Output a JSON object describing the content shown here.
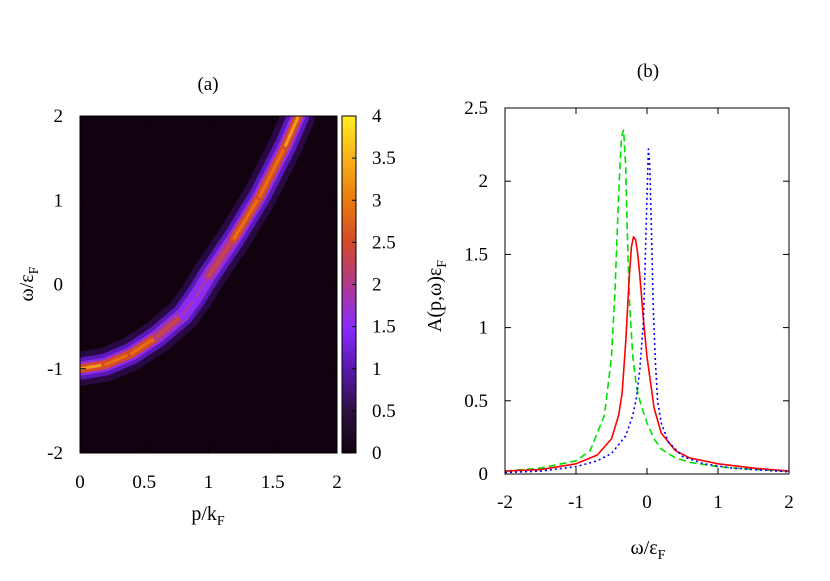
{
  "panel_a": {
    "title": "(a)",
    "xlabel": {
      "base": "p/k",
      "sub": "F"
    },
    "ylabel": {
      "base": "ω/ε",
      "sub": "F"
    }
  },
  "panel_b": {
    "title": "(b)",
    "xlabel": {
      "base": "ω/ε",
      "sub": "F"
    },
    "ylabel": {
      "base": "A(p,ω)ε",
      "sub": "F"
    }
  },
  "chart_data": [
    {
      "type": "heatmap",
      "title": "(a)",
      "xlabel": "p/k_F",
      "ylabel": "ω/ε_F",
      "xlim": [
        0,
        2
      ],
      "ylim": [
        -2,
        2
      ],
      "xticks": [
        "0",
        "0.5",
        "1",
        "1.5",
        "2"
      ],
      "yticks": [
        "-2",
        "-1",
        "0",
        "1",
        "2"
      ],
      "colorbar": {
        "range": [
          0,
          4
        ],
        "ticks": [
          "0",
          "0.5",
          "1",
          "1.5",
          "2",
          "2.5",
          "3",
          "3.5",
          "4"
        ],
        "colors": [
          "#120210",
          "#2d1040",
          "#5a18b0",
          "#8a2cff",
          "#b0388c",
          "#d24a2a",
          "#ea7a0e",
          "#f7b21a",
          "#ffee22"
        ]
      },
      "ridge": {
        "p": [
          0,
          0.2,
          0.4,
          0.6,
          0.8,
          0.9,
          1.0,
          1.2,
          1.4,
          1.6,
          1.7
        ],
        "omega": [
          -1.0,
          -0.95,
          -0.82,
          -0.62,
          -0.36,
          -0.15,
          0.1,
          0.55,
          1.05,
          1.65,
          2.0
        ],
        "peak_value": [
          2.7,
          2.6,
          2.4,
          2.2,
          1.9,
          1.3,
          1.8,
          2.2,
          2.4,
          2.6,
          2.7
        ]
      }
    },
    {
      "type": "line",
      "title": "(b)",
      "xlabel": "ω/ε_F",
      "ylabel": "A(p,ω)ε_F",
      "xlim": [
        -2,
        2
      ],
      "ylim": [
        0,
        2.5
      ],
      "xticks": [
        "-2",
        "-1",
        "0",
        "1",
        "2"
      ],
      "yticks": [
        "0",
        "0.5",
        "1",
        "1.5",
        "2",
        "2.5"
      ],
      "series": [
        {
          "color": "#00e000",
          "style": "dashed",
          "x": [
            -2.0,
            -1.5,
            -1.0,
            -0.8,
            -0.6,
            -0.5,
            -0.45,
            -0.4,
            -0.36,
            -0.33,
            -0.3,
            -0.28,
            -0.25,
            -0.2,
            -0.15,
            -0.1,
            -0.05,
            0.0,
            0.1,
            0.2,
            0.4,
            0.6,
            1.0,
            1.5,
            2.0
          ],
          "y": [
            0.02,
            0.04,
            0.09,
            0.16,
            0.4,
            0.8,
            1.25,
            1.9,
            2.3,
            2.35,
            2.1,
            1.7,
            1.2,
            0.8,
            0.6,
            0.5,
            0.42,
            0.35,
            0.24,
            0.17,
            0.11,
            0.08,
            0.05,
            0.03,
            0.02
          ]
        },
        {
          "color": "#ff0000",
          "style": "solid",
          "x": [
            -2.0,
            -1.5,
            -1.0,
            -0.7,
            -0.5,
            -0.4,
            -0.35,
            -0.3,
            -0.25,
            -0.22,
            -0.19,
            -0.16,
            -0.13,
            -0.1,
            -0.05,
            0.0,
            0.1,
            0.2,
            0.4,
            0.6,
            1.0,
            1.5,
            2.0
          ],
          "y": [
            0.02,
            0.03,
            0.07,
            0.13,
            0.24,
            0.4,
            0.55,
            0.9,
            1.35,
            1.55,
            1.62,
            1.6,
            1.5,
            1.35,
            1.05,
            0.8,
            0.45,
            0.28,
            0.16,
            0.11,
            0.07,
            0.04,
            0.02
          ]
        },
        {
          "color": "#0000ff",
          "style": "dotted",
          "x": [
            -2.0,
            -1.5,
            -1.0,
            -0.7,
            -0.5,
            -0.3,
            -0.2,
            -0.15,
            -0.1,
            -0.05,
            -0.02,
            0.0,
            0.02,
            0.04,
            0.06,
            0.09,
            0.12,
            0.15,
            0.2,
            0.3,
            0.5,
            0.8,
            1.2,
            2.0
          ],
          "y": [
            0.01,
            0.02,
            0.05,
            0.09,
            0.14,
            0.26,
            0.4,
            0.52,
            0.72,
            1.05,
            1.55,
            1.9,
            2.22,
            2.1,
            1.7,
            1.1,
            0.75,
            0.5,
            0.35,
            0.22,
            0.12,
            0.07,
            0.04,
            0.015
          ]
        }
      ]
    }
  ]
}
